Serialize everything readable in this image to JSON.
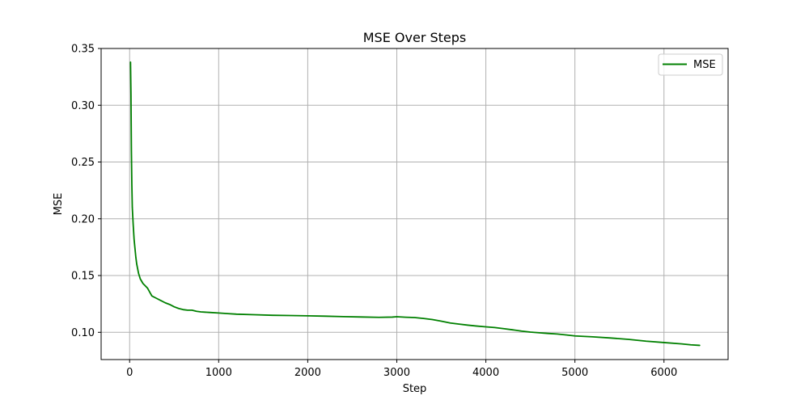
{
  "chart_data": {
    "type": "line",
    "title": "MSE Over Steps",
    "xlabel": "Step",
    "ylabel": "MSE",
    "xlim": [
      -320,
      6720
    ],
    "ylim": [
      0.076,
      0.35
    ],
    "xticks": [
      0,
      1000,
      2000,
      3000,
      4000,
      5000,
      6000
    ],
    "xtick_labels": [
      "0",
      "1000",
      "2000",
      "3000",
      "4000",
      "5000",
      "6000"
    ],
    "yticks": [
      0.1,
      0.15,
      0.2,
      0.25,
      0.3,
      0.35
    ],
    "ytick_labels": [
      "0.10",
      "0.15",
      "0.20",
      "0.25",
      "0.30",
      "0.35"
    ],
    "grid": true,
    "legend": {
      "position": "upper-right",
      "entries": [
        "MSE"
      ]
    },
    "series": [
      {
        "name": "MSE",
        "color": "#008000",
        "x": [
          10,
          15,
          20,
          25,
          30,
          40,
          50,
          60,
          70,
          80,
          100,
          120,
          150,
          200,
          250,
          300,
          350,
          400,
          450,
          500,
          550,
          600,
          650,
          700,
          750,
          800,
          900,
          1000,
          1100,
          1200,
          1400,
          1600,
          1800,
          2000,
          2200,
          2400,
          2600,
          2800,
          2950,
          3000,
          3100,
          3200,
          3300,
          3400,
          3500,
          3600,
          3700,
          3800,
          3900,
          4000,
          4100,
          4200,
          4300,
          4400,
          4500,
          4600,
          4700,
          4800,
          4900,
          5000,
          5200,
          5400,
          5600,
          5800,
          6000,
          6200,
          6300,
          6400
        ],
        "y": [
          0.338,
          0.31,
          0.26,
          0.23,
          0.21,
          0.195,
          0.182,
          0.174,
          0.166,
          0.16,
          0.152,
          0.147,
          0.143,
          0.139,
          0.132,
          0.13,
          0.128,
          0.126,
          0.1245,
          0.1225,
          0.121,
          0.12,
          0.1195,
          0.1195,
          0.1185,
          0.118,
          0.1175,
          0.117,
          0.1165,
          0.116,
          0.1155,
          0.115,
          0.1148,
          0.1145,
          0.1142,
          0.1138,
          0.1135,
          0.1132,
          0.1134,
          0.1137,
          0.1133,
          0.113,
          0.1122,
          0.1112,
          0.1098,
          0.1082,
          0.1072,
          0.1063,
          0.1055,
          0.1048,
          0.1042,
          0.1032,
          0.1022,
          0.1011,
          0.1002,
          0.0996,
          0.099,
          0.0985,
          0.0977,
          0.0968,
          0.096,
          0.095,
          0.0938,
          0.0922,
          0.091,
          0.0898,
          0.089,
          0.0885
        ]
      }
    ]
  }
}
